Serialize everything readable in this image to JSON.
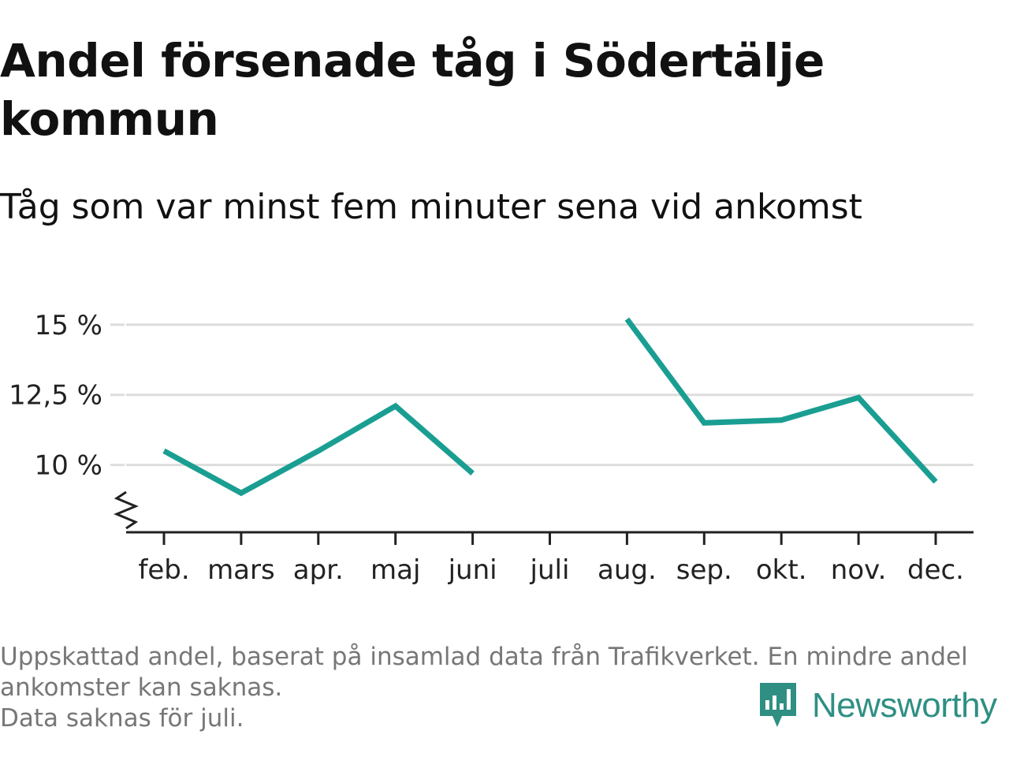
{
  "title": "Andel försenade tåg i Södertälje kommun",
  "subtitle": "Tåg som var minst fem minuter sena vid ankomst",
  "footnote": {
    "line1": "Uppskattad andel, baserat på insamlad data från Trafikverket. En mindre andel ankomster kan saknas.",
    "line2": "Data saknas för juli."
  },
  "brand": {
    "name": "Newsworthy",
    "icon": "newsworthy-logo-icon",
    "color": "#2f8f83"
  },
  "colors": {
    "line": "#1a9e92",
    "grid": "#dddddd",
    "axis": "#222222"
  },
  "chart_data": {
    "type": "line",
    "title": "Andel försenade tåg i Södertälje kommun",
    "subtitle": "Tåg som var minst fem minuter sena vid ankomst",
    "categories": [
      "feb.",
      "mars",
      "apr.",
      "maj",
      "juni",
      "juli",
      "aug.",
      "sep.",
      "okt.",
      "nov.",
      "dec."
    ],
    "series": [
      {
        "values": [
          10.5,
          9.0,
          10.5,
          12.1,
          9.7,
          null,
          15.2,
          11.5,
          11.6,
          12.4,
          9.4
        ]
      }
    ],
    "yticks": [
      10,
      12.5,
      15
    ],
    "ytick_labels": [
      "10 %",
      "12,5 %",
      "15 %"
    ],
    "ylim": [
      7.6,
      15.5
    ],
    "axis_break": true,
    "grid": true,
    "legend": "none"
  }
}
